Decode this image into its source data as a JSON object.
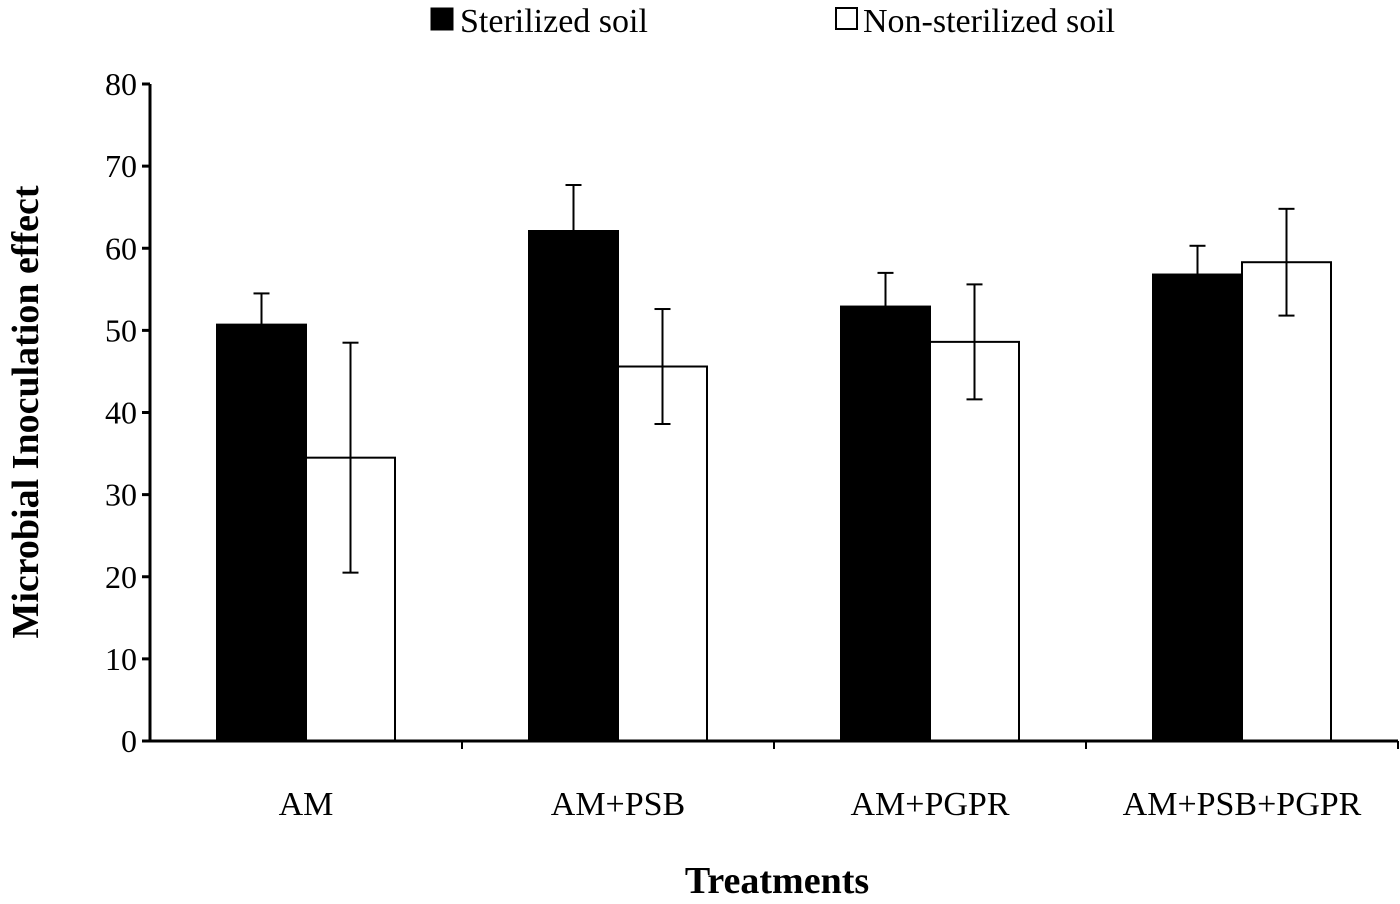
{
  "chart_data": {
    "type": "bar",
    "title": "",
    "xlabel": "Treatments",
    "ylabel": "Microbial Inoculation effect",
    "ylim": [
      0,
      80
    ],
    "yticks": [
      0,
      10,
      20,
      30,
      40,
      50,
      60,
      70,
      80
    ],
    "grid": false,
    "legend_position": "top-center",
    "categories": [
      "AM",
      "AM+PSB",
      "AM+PGPR",
      "AM+PSB+PGPR"
    ],
    "series": [
      {
        "name": "Sterilized soil",
        "color": "#000000",
        "values": [
          50.7,
          62.1,
          52.9,
          56.8
        ],
        "errors": [
          3.8,
          5.6,
          4.1,
          3.5
        ],
        "error_direction": "up"
      },
      {
        "name": "Non-sterilized soil",
        "color": "#ffffff",
        "values": [
          34.5,
          45.6,
          48.6,
          58.3
        ],
        "errors": [
          14.0,
          7.0,
          7.0,
          6.5
        ],
        "error_direction": "both"
      }
    ]
  }
}
